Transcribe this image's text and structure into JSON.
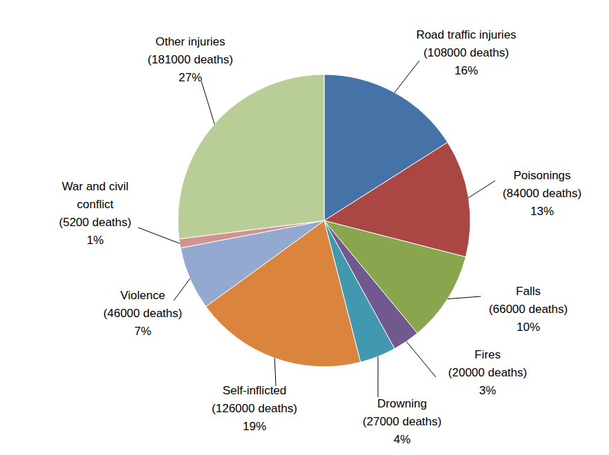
{
  "chart_data": {
    "type": "pie",
    "categories": [
      "Road traffic injuries",
      "Poisonings",
      "Falls",
      "Fires",
      "Drowning",
      "Self-inflicted",
      "Violence",
      "War and civil conflict",
      "Other injuries"
    ],
    "values": [
      16,
      13,
      10,
      3,
      4,
      19,
      7,
      1,
      27
    ],
    "value_labels": [
      "16%",
      "13%",
      "10%",
      "3%",
      "4%",
      "19%",
      "7%",
      "1%",
      "27%"
    ],
    "deaths": [
      108000,
      84000,
      66000,
      20000,
      27000,
      126000,
      46000,
      5200,
      181000
    ],
    "deaths_labels": [
      "(108000 deaths)",
      "(84000 deaths)",
      "(66000 deaths)",
      "(20000 deaths)",
      "(27000 deaths)",
      "(126000 deaths)",
      "(46000 deaths)",
      "(5200 deaths)",
      "(181000 deaths)"
    ],
    "colors": [
      "#4572A7",
      "#AA4643",
      "#89A54E",
      "#71588F",
      "#4198AF",
      "#DB843D",
      "#93A9CF",
      "#D19392",
      "#B9CD96"
    ]
  }
}
